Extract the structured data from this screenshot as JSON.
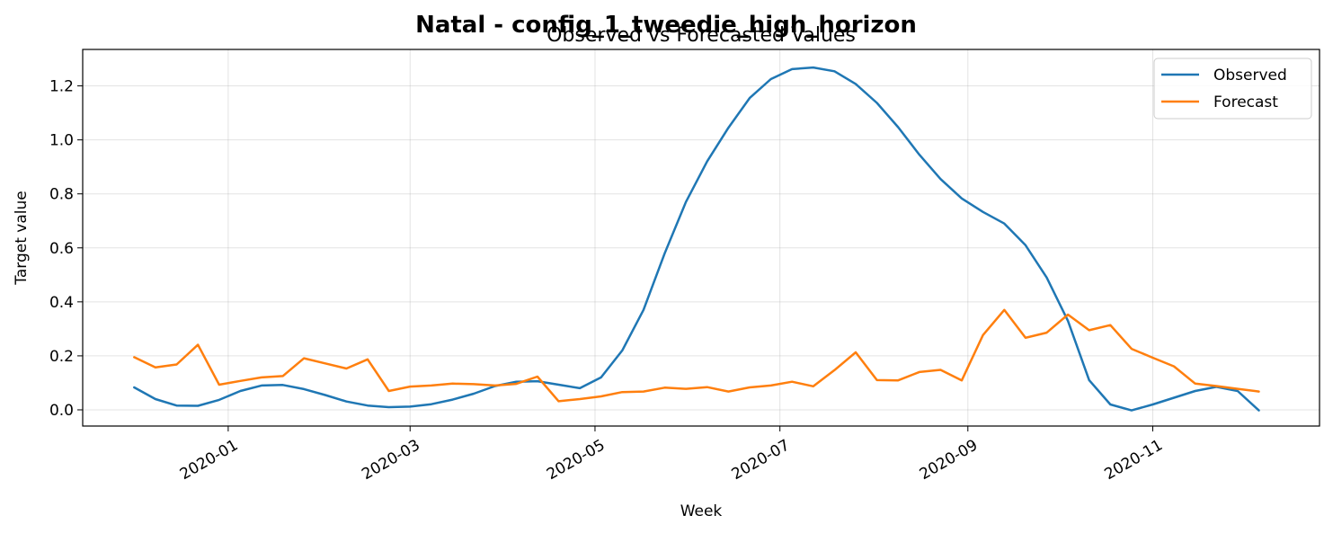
{
  "figure": {
    "suptitle": "Natal - config_1_tweedie_high_horizon"
  },
  "chart_data": {
    "type": "line",
    "title": "Observed vs Forecasted Values",
    "xlabel": "Week",
    "ylabel": "Target value",
    "x_tick_labels": [
      "2020-01",
      "2020-03",
      "2020-05",
      "2020-07",
      "2020-09",
      "2020-11"
    ],
    "x_ticks": [
      "2020-01-01",
      "2020-03-01",
      "2020-05-01",
      "2020-07-01",
      "2020-09-01",
      "2020-11-01"
    ],
    "y_ticks": [
      0.0,
      0.2,
      0.4,
      0.6,
      0.8,
      1.0,
      1.2
    ],
    "y_tick_labels": [
      "0.0",
      "0.2",
      "0.4",
      "0.6",
      "0.8",
      "1.0",
      "1.2"
    ],
    "xlim": [
      "2019-11-14",
      "2020-12-26"
    ],
    "ylim": [
      -0.06,
      1.335
    ],
    "grid": true,
    "legend_position": "upper right",
    "x": [
      "2019-12-01",
      "2019-12-08",
      "2019-12-15",
      "2019-12-22",
      "2019-12-29",
      "2020-01-05",
      "2020-01-12",
      "2020-01-19",
      "2020-01-26",
      "2020-02-02",
      "2020-02-09",
      "2020-02-16",
      "2020-02-23",
      "2020-03-01",
      "2020-03-08",
      "2020-03-15",
      "2020-03-22",
      "2020-03-29",
      "2020-04-05",
      "2020-04-12",
      "2020-04-19",
      "2020-04-26",
      "2020-05-03",
      "2020-05-10",
      "2020-05-17",
      "2020-05-24",
      "2020-05-31",
      "2020-06-07",
      "2020-06-14",
      "2020-06-21",
      "2020-06-28",
      "2020-07-05",
      "2020-07-12",
      "2020-07-19",
      "2020-07-26",
      "2020-08-02",
      "2020-08-09",
      "2020-08-16",
      "2020-08-23",
      "2020-08-30",
      "2020-09-06",
      "2020-09-13",
      "2020-09-20",
      "2020-09-27",
      "2020-10-04",
      "2020-10-11",
      "2020-10-18",
      "2020-10-25",
      "2020-11-01",
      "2020-11-08",
      "2020-11-15",
      "2020-11-22",
      "2020-11-29",
      "2020-12-06"
    ],
    "series": [
      {
        "name": "Observed",
        "color": "#1f77b4",
        "values": [
          0.083,
          0.04,
          0.016,
          0.015,
          0.037,
          0.07,
          0.09,
          0.092,
          0.077,
          0.055,
          0.031,
          0.016,
          0.01,
          0.012,
          0.021,
          0.038,
          0.06,
          0.088,
          0.104,
          0.106,
          0.093,
          0.08,
          0.12,
          0.22,
          0.37,
          0.58,
          0.77,
          0.92,
          1.045,
          1.155,
          1.225,
          1.262,
          1.268,
          1.254,
          1.207,
          1.137,
          1.047,
          0.945,
          0.855,
          0.783,
          0.733,
          0.69,
          0.61,
          0.49,
          0.33,
          0.11,
          0.02,
          -0.002,
          0.02,
          0.045,
          0.07,
          0.085,
          0.07,
          -0.002
        ]
      },
      {
        "name": "Forecast",
        "color": "#ff7f0e",
        "values": [
          0.195,
          0.157,
          0.168,
          0.241,
          0.093,
          0.107,
          0.12,
          0.125,
          0.191,
          0.172,
          0.153,
          0.187,
          0.07,
          0.086,
          0.09,
          0.097,
          0.095,
          0.09,
          0.096,
          0.123,
          0.032,
          0.04,
          0.05,
          0.066,
          0.068,
          0.082,
          0.078,
          0.084,
          0.068,
          0.083,
          0.09,
          0.104,
          0.087,
          0.147,
          0.213,
          0.11,
          0.109,
          0.14,
          0.148,
          0.109,
          0.277,
          0.37,
          0.267,
          0.286,
          0.353,
          0.295,
          0.314,
          0.226,
          0.193,
          0.161,
          0.097,
          0.088,
          0.078,
          0.068
        ]
      }
    ]
  }
}
